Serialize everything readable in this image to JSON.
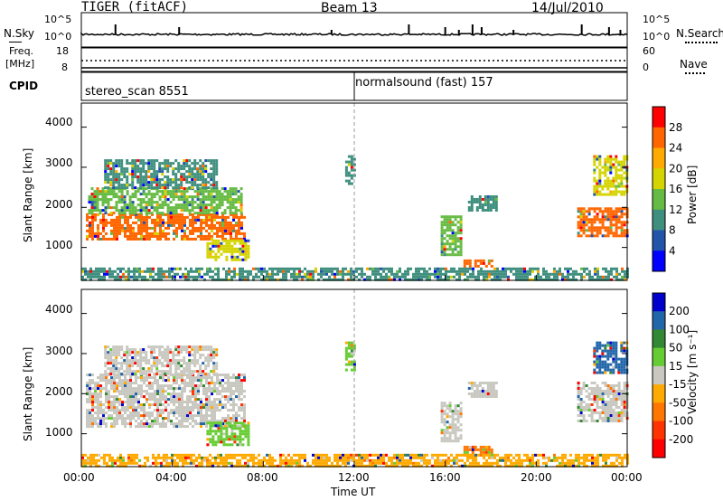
{
  "header": {
    "title": "TIGER (fitACF)",
    "beam": "Beam 13",
    "date": "14/Jul/2010"
  },
  "noise_panel": {
    "left_label": "N.Sky",
    "right_label": "N.Search",
    "left_ticks": [
      "10^5",
      "10^0"
    ],
    "right_ticks": [
      "10^5",
      "10^0"
    ]
  },
  "freq_panel": {
    "left_label_1": "Freq.",
    "left_label_2": "[MHz]",
    "right_label": "Nave",
    "left_ticks": [
      "18",
      "8"
    ],
    "right_ticks": [
      "60",
      "0"
    ]
  },
  "cpid": {
    "label": "CPID",
    "segments": [
      {
        "name": "stereo_scan 8551",
        "start_hour": 0
      },
      {
        "name": "normalsound (fast) 157",
        "start_hour": 12
      }
    ]
  },
  "chart_data": [
    {
      "type": "heatmap",
      "panel": "power",
      "ylabel": "Slant Range [km]",
      "xlabel": "",
      "ylim": [
        180,
        4600
      ],
      "yticks": [
        "4000",
        "3000",
        "2000",
        "1000"
      ],
      "colorbar": {
        "label": "Power [dB]",
        "ticks": [
          "28",
          "24",
          "20",
          "16",
          "12",
          "8",
          "4"
        ],
        "colors": [
          "#ff0000",
          "#ff6600",
          "#ffaa00",
          "#d4d400",
          "#66bb44",
          "#3f8f7f",
          "#2255aa",
          "#0000ff"
        ]
      },
      "regions": [
        {
          "x": [
            0.2,
            7.2
          ],
          "y": [
            1200,
            1850
          ],
          "level": 24
        },
        {
          "x": [
            0.3,
            7.0
          ],
          "y": [
            1850,
            2500
          ],
          "level": 12
        },
        {
          "x": [
            1.0,
            6.0
          ],
          "y": [
            2500,
            3200
          ],
          "level": 8
        },
        {
          "x": [
            5.5,
            7.4
          ],
          "y": [
            700,
            1200
          ],
          "level": 18
        },
        {
          "x": [
            11.6,
            12.0
          ],
          "y": [
            2600,
            3300
          ],
          "level": 10
        },
        {
          "x": [
            15.8,
            16.7
          ],
          "y": [
            800,
            1800
          ],
          "level": 14
        },
        {
          "x": [
            16.8,
            18.0
          ],
          "y": [
            500,
            700
          ],
          "level": 26
        },
        {
          "x": [
            17.0,
            18.2
          ],
          "y": [
            1900,
            2300
          ],
          "level": 8
        },
        {
          "x": [
            21.8,
            24.0
          ],
          "y": [
            1300,
            2000
          ],
          "level": 24
        },
        {
          "x": [
            22.5,
            24.0
          ],
          "y": [
            2300,
            3300
          ],
          "level": 18
        },
        {
          "x": [
            0.0,
            24.0
          ],
          "y": [
            200,
            500
          ],
          "level": 8
        }
      ]
    },
    {
      "type": "heatmap",
      "panel": "velocity",
      "ylabel": "Slant Range [km]",
      "xlabel": "Time UT",
      "ylim": [
        180,
        4600
      ],
      "yticks": [
        "4000",
        "3000",
        "2000",
        "1000"
      ],
      "xticks": [
        "00:00",
        "04:00",
        "08:00",
        "12:00",
        "16:00",
        "20:00",
        "00:00"
      ],
      "xtick_hours": [
        0,
        4,
        8,
        12,
        16,
        20,
        24
      ],
      "colorbar": {
        "label": "Velocity [m s⁻¹]",
        "ticks": [
          "200",
          "100",
          "50",
          "15",
          "-15",
          "-50",
          "-100",
          "-200"
        ],
        "colors": [
          "#0000cc",
          "#2266aa",
          "#338833",
          "#66cc33",
          "#c8c8c0",
          "#ffaa00",
          "#ff7700",
          "#ff3300",
          "#ff0000"
        ]
      },
      "regions": [
        {
          "x": [
            0.2,
            7.2
          ],
          "y": [
            1200,
            2500
          ],
          "level": 0
        },
        {
          "x": [
            1.0,
            6.0
          ],
          "y": [
            2500,
            3200
          ],
          "level": 0
        },
        {
          "x": [
            5.5,
            7.4
          ],
          "y": [
            700,
            1300
          ],
          "level": 40
        },
        {
          "x": [
            11.6,
            12.0
          ],
          "y": [
            2600,
            3300
          ],
          "level": 40
        },
        {
          "x": [
            15.8,
            16.7
          ],
          "y": [
            800,
            1800
          ],
          "level": 0
        },
        {
          "x": [
            16.8,
            18.0
          ],
          "y": [
            450,
            700
          ],
          "level": -60
        },
        {
          "x": [
            17.0,
            18.2
          ],
          "y": [
            1900,
            2300
          ],
          "level": 0
        },
        {
          "x": [
            21.8,
            24.0
          ],
          "y": [
            1300,
            2300
          ],
          "level": 0
        },
        {
          "x": [
            22.5,
            24.0
          ],
          "y": [
            2500,
            3300
          ],
          "level": 120
        },
        {
          "x": [
            0.0,
            24.0
          ],
          "y": [
            200,
            500
          ],
          "level": -30
        }
      ]
    }
  ]
}
